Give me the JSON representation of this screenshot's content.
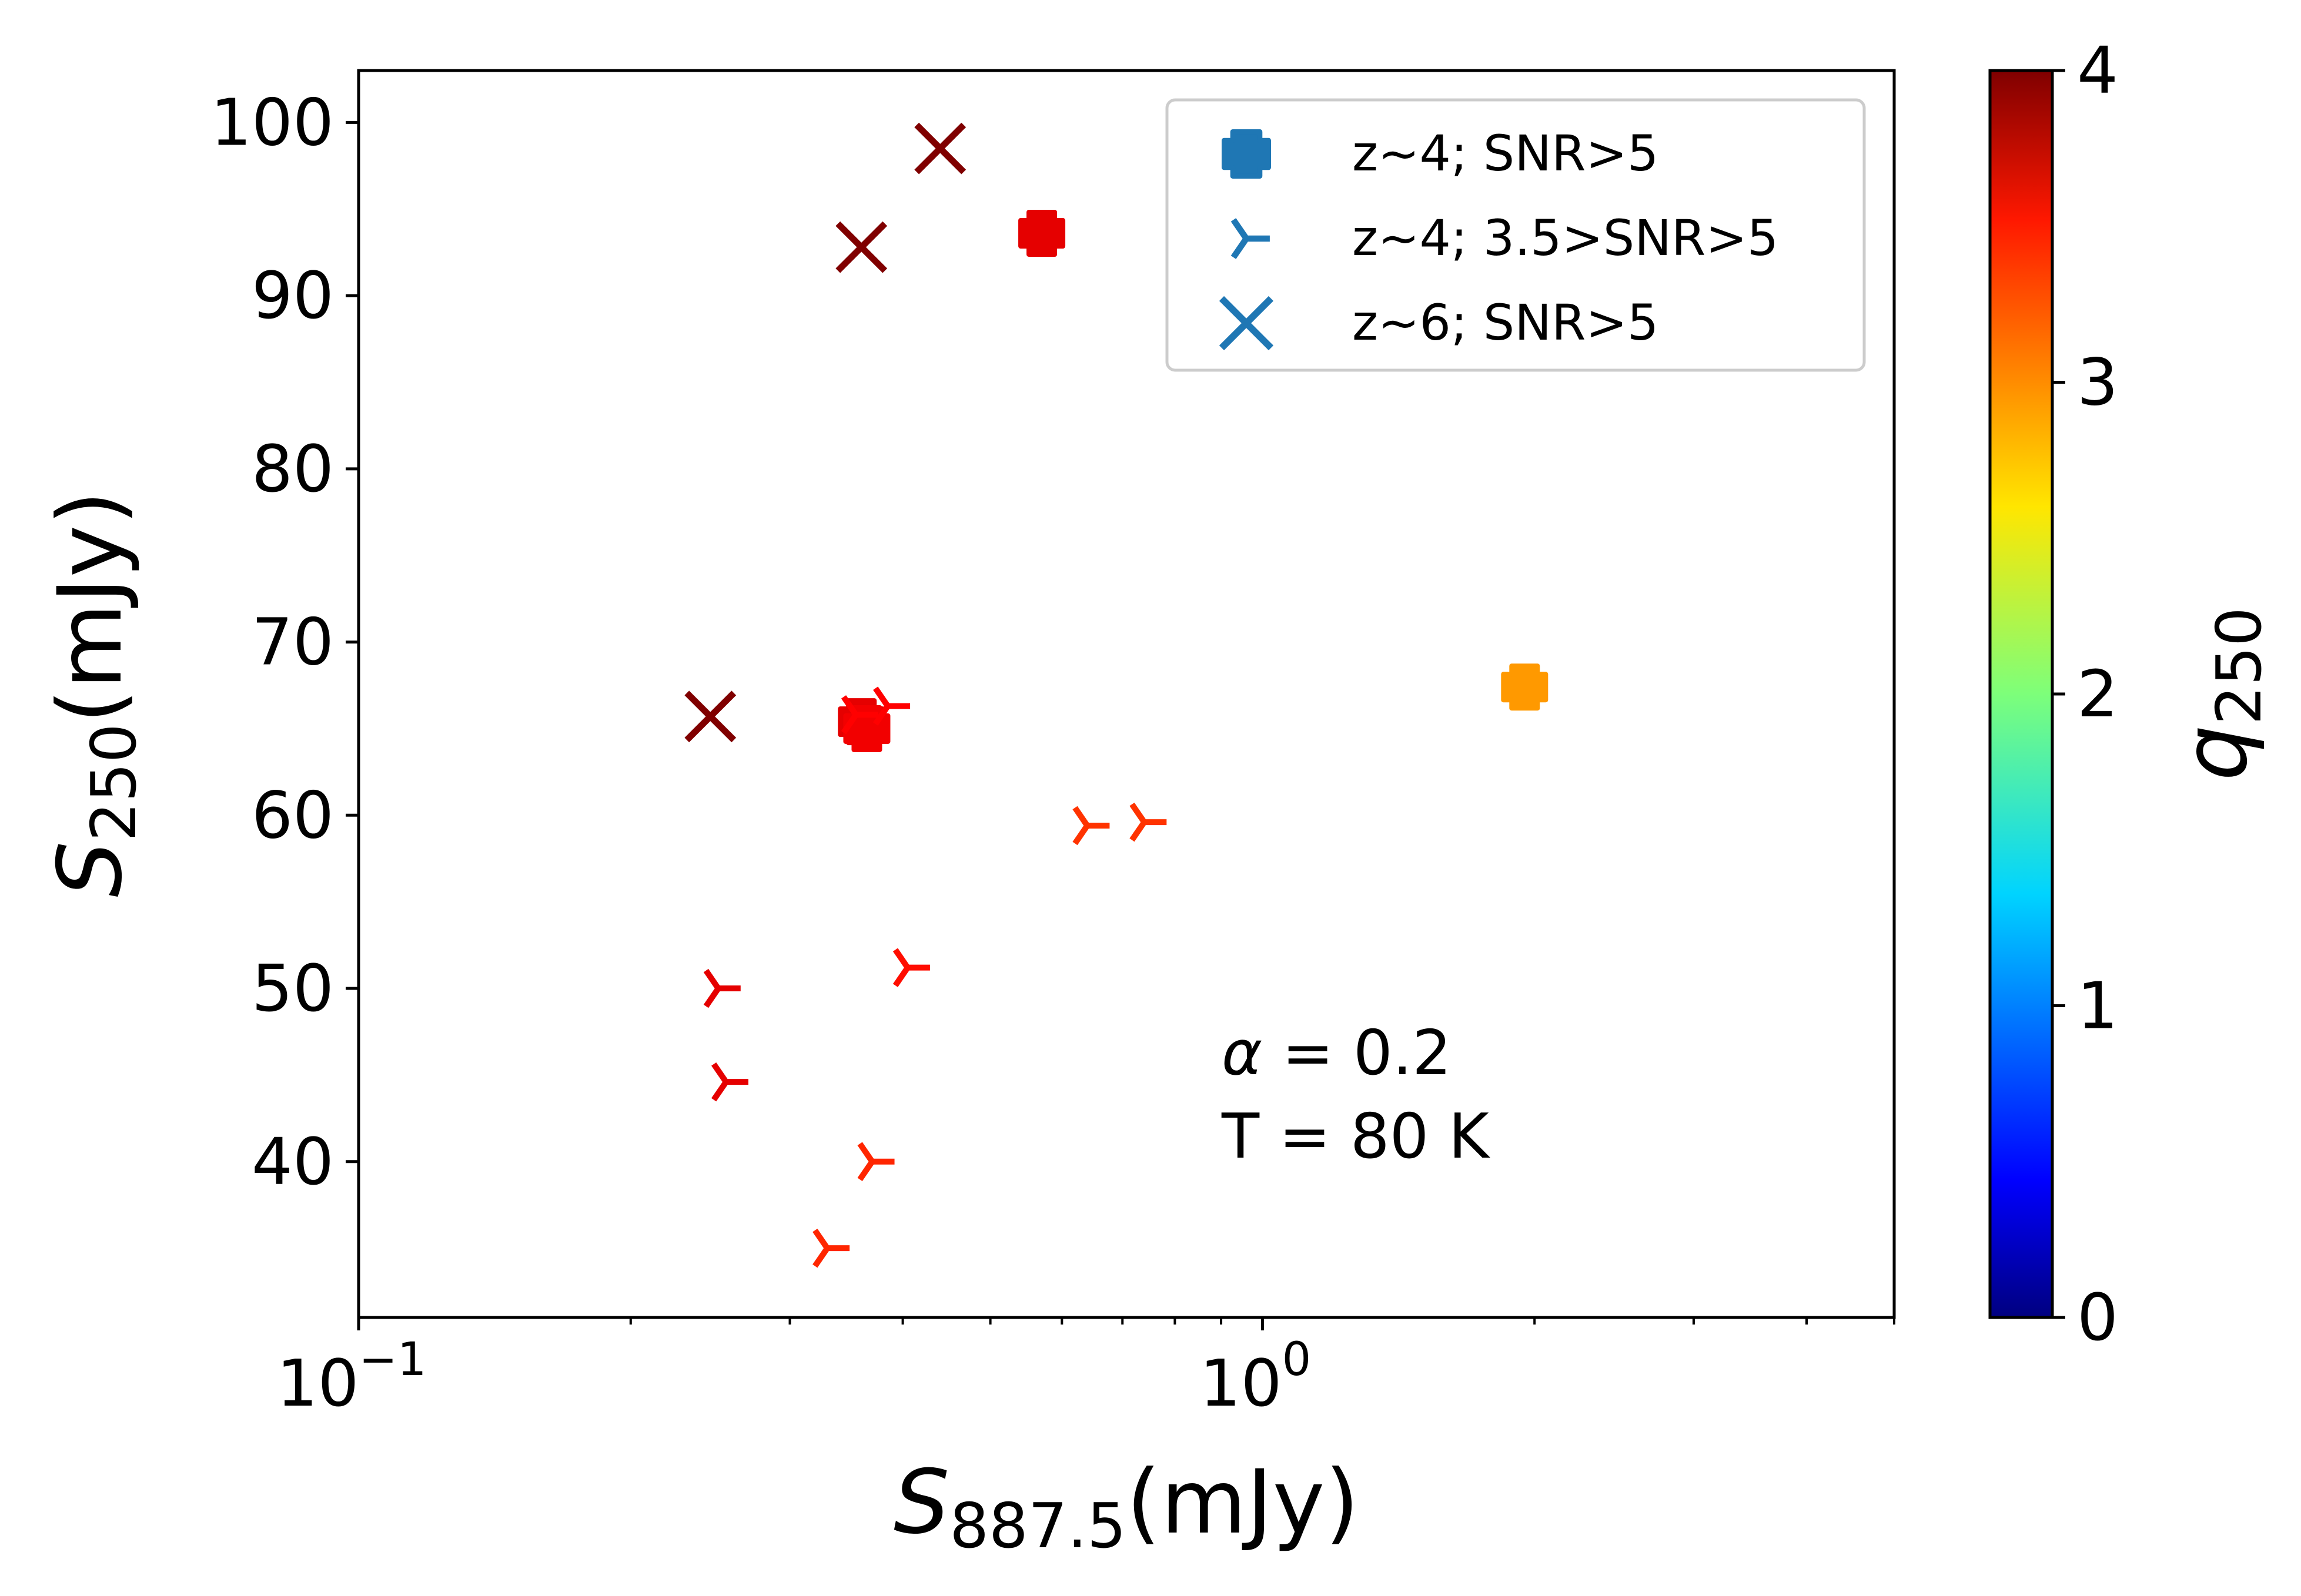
{
  "chart_data": {
    "type": "scatter",
    "x_scale": "log",
    "xlim": [
      0.1,
      5.0
    ],
    "ylim": [
      31,
      103
    ],
    "xlabel_main": "S",
    "xlabel_sub": "887.5",
    "xlabel_unit": "(mJy)",
    "ylabel_main": "S",
    "ylabel_sub": "250",
    "ylabel_unit": "(mJy)",
    "x_ticks": [
      {
        "value": 0.1,
        "base": "10",
        "exp": "−1"
      },
      {
        "value": 1.0,
        "base": "10",
        "exp": "0"
      }
    ],
    "x_minor_ticks": [
      0.2,
      0.3,
      0.4,
      0.5,
      0.6,
      0.7,
      0.8,
      0.9,
      2,
      3,
      4,
      5
    ],
    "y_ticks": [
      {
        "value": 40,
        "label": "40"
      },
      {
        "value": 50,
        "label": "50"
      },
      {
        "value": 60,
        "label": "60"
      },
      {
        "value": 70,
        "label": "70"
      },
      {
        "value": 80,
        "label": "80"
      },
      {
        "value": 90,
        "label": "90"
      },
      {
        "value": 100,
        "label": "100"
      }
    ],
    "legend_position": "top-right",
    "legend_color": "#1f77b4",
    "series": [
      {
        "name": "z~4; SNR>5",
        "marker": "plus",
        "points": [
          {
            "x": 0.57,
            "y": 93.6,
            "q": 3.6
          },
          {
            "x": 0.36,
            "y": 65.4,
            "q": 3.6
          },
          {
            "x": 0.365,
            "y": 65.0,
            "q": 3.55
          },
          {
            "x": 1.95,
            "y": 67.4,
            "q": 2.9
          }
        ]
      },
      {
        "name": "z~4; 3.5>SNR>5",
        "marker": "tri",
        "points": [
          {
            "x": 0.355,
            "y": 65.8,
            "q": 3.5
          },
          {
            "x": 0.385,
            "y": 66.3,
            "q": 3.5
          },
          {
            "x": 0.64,
            "y": 59.4,
            "q": 3.3
          },
          {
            "x": 0.74,
            "y": 59.6,
            "q": 3.3
          },
          {
            "x": 0.405,
            "y": 51.2,
            "q": 3.45
          },
          {
            "x": 0.25,
            "y": 50.0,
            "q": 3.6
          },
          {
            "x": 0.255,
            "y": 44.6,
            "q": 3.6
          },
          {
            "x": 0.37,
            "y": 40.0,
            "q": 3.35
          },
          {
            "x": 0.33,
            "y": 35.0,
            "q": 3.35
          }
        ]
      },
      {
        "name": "z~6; SNR>5",
        "marker": "x",
        "points": [
          {
            "x": 0.44,
            "y": 98.5,
            "q": 4.0
          },
          {
            "x": 0.36,
            "y": 92.8,
            "q": 4.0
          },
          {
            "x": 0.245,
            "y": 65.7,
            "q": 4.0
          }
        ]
      }
    ],
    "colorbar": {
      "label_main": "q",
      "label_sub": "250",
      "range": [
        0,
        4
      ],
      "colormap": "jet",
      "ticks": [
        {
          "value": 0,
          "label": "0"
        },
        {
          "value": 1,
          "label": "1"
        },
        {
          "value": 2,
          "label": "2"
        },
        {
          "value": 3,
          "label": "3"
        },
        {
          "value": 4,
          "label": "4"
        }
      ]
    },
    "annotation": {
      "line1_symbol": "α",
      "line1_rest": " = 0.2",
      "line2": "T = 80 K"
    }
  }
}
